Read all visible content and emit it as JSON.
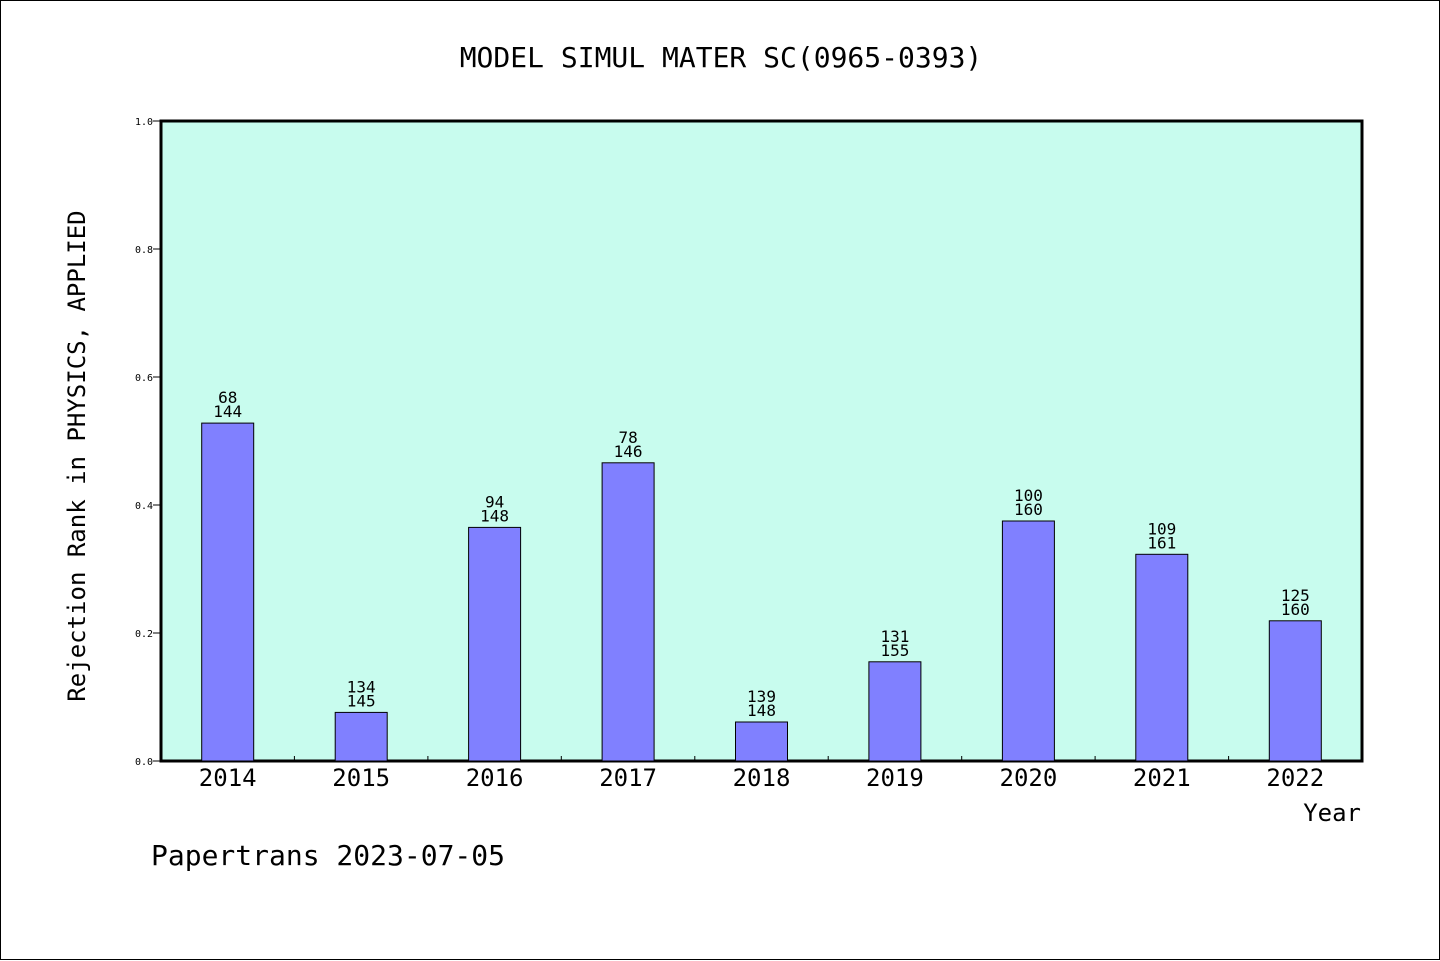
{
  "chart_data": {
    "type": "bar",
    "title": "MODEL SIMUL MATER SC(0965-0393)",
    "xlabel": "Year",
    "ylabel": "Rejection Rank in PHYSICS, APPLIED",
    "ylim": [
      0,
      1.0
    ],
    "yticks": [
      "0.0",
      "0.2",
      "0.4",
      "0.6",
      "0.8",
      "1.0"
    ],
    "ytick_values": [
      0,
      0.2,
      0.4,
      0.6,
      0.8,
      1.0
    ],
    "categories": [
      "2014",
      "2015",
      "2016",
      "2017",
      "2018",
      "2019",
      "2020",
      "2021",
      "2022"
    ],
    "values": [
      0.528,
      0.076,
      0.365,
      0.466,
      0.061,
      0.155,
      0.375,
      0.323,
      0.219
    ],
    "rank_labels": [
      "68",
      "134",
      "94",
      "78",
      "139",
      "131",
      "100",
      "109",
      "125"
    ],
    "total_labels": [
      "144",
      "145",
      "148",
      "146",
      "148",
      "155",
      "160",
      "161",
      "160"
    ],
    "grid": false,
    "legend": "none",
    "colors": {
      "plot_background": "#c8fcee",
      "bar_fill": "#8080ff",
      "bar_stroke": "#000000",
      "axis": "#000000"
    }
  },
  "footer": {
    "text": "Papertrans 2023-07-05"
  }
}
